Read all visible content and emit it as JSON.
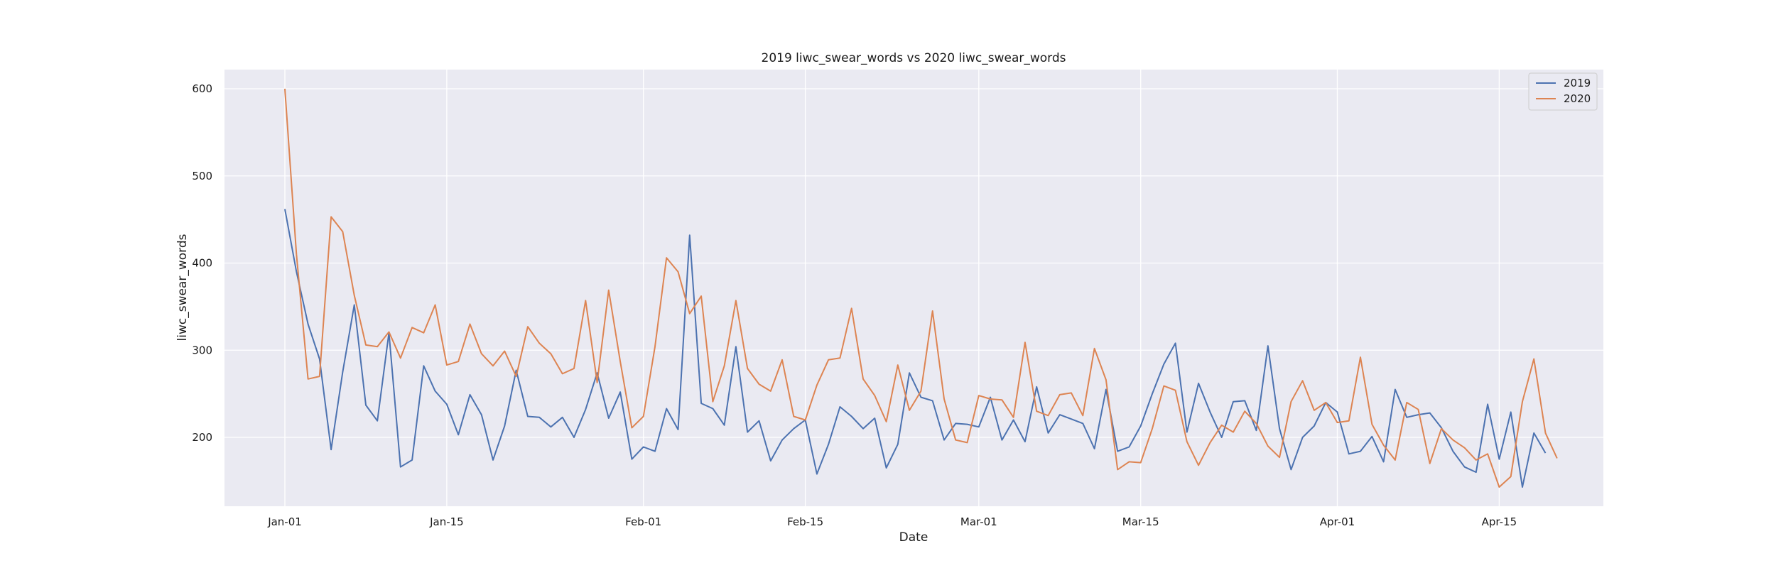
{
  "chart_data": {
    "type": "line",
    "title": "2019 liwc_swear_words vs 2020 liwc_swear_words",
    "xlabel": "Date",
    "ylabel": "liwc_swear_words",
    "x_range": [
      "Jan-01",
      "Apr-20"
    ],
    "ylim": [
      120,
      620
    ],
    "grid": true,
    "legend_position": "top-right",
    "x_ticks": [
      "Jan-01",
      "Jan-15",
      "Feb-01",
      "Feb-15",
      "Mar-01",
      "Mar-15",
      "Apr-01",
      "Apr-15"
    ],
    "y_ticks": [
      200,
      300,
      400,
      500,
      600
    ],
    "colors": {
      "2019": "#4c72b0",
      "2020": "#dd8452",
      "background": "#eaeaf2",
      "grid": "#ffffff"
    },
    "series": [
      {
        "name": "2019",
        "start": "Jan-01",
        "values": [
          462,
          390,
          330,
          290,
          186,
          275,
          352,
          237,
          219,
          320,
          166,
          174,
          282,
          253,
          238,
          203,
          249,
          226,
          174,
          213,
          277,
          224,
          223,
          212,
          223,
          200,
          232,
          274,
          222,
          252,
          175,
          189,
          184,
          233,
          209,
          432,
          239,
          233,
          214,
          304,
          206,
          219,
          173,
          197,
          210,
          220,
          158,
          192,
          235,
          224,
          210,
          222,
          165,
          192,
          274,
          246,
          242,
          197,
          216,
          215,
          212,
          246,
          197,
          220,
          195,
          258,
          205,
          226,
          221,
          216,
          187,
          255,
          184,
          189,
          213,
          250,
          284,
          308,
          206,
          262,
          229,
          200,
          241,
          242,
          208,
          305,
          210,
          163,
          200,
          213,
          240,
          229,
          181,
          184,
          201,
          172,
          255,
          223,
          226,
          228,
          211,
          184,
          166,
          160,
          238,
          175,
          229,
          143,
          205,
          182
        ]
      },
      {
        "name": "2020",
        "start": "Jan-01",
        "values": [
          600,
          410,
          267,
          270,
          453,
          436,
          363,
          306,
          304,
          321,
          291,
          326,
          320,
          352,
          283,
          287,
          330,
          296,
          282,
          299,
          270,
          327,
          308,
          296,
          273,
          279,
          357,
          263,
          369,
          287,
          211,
          224,
          304,
          406,
          390,
          342,
          362,
          241,
          282,
          357,
          279,
          261,
          253,
          289,
          224,
          220,
          260,
          289,
          291,
          348,
          267,
          248,
          218,
          283,
          231,
          253,
          345,
          244,
          197,
          194,
          248,
          244,
          243,
          223,
          309,
          230,
          225,
          249,
          251,
          225,
          302,
          266,
          163,
          172,
          171,
          210,
          259,
          254,
          195,
          168,
          194,
          214,
          206,
          230,
          216,
          190,
          177,
          241,
          265,
          231,
          240,
          217,
          219,
          292,
          215,
          191,
          174,
          240,
          232,
          170,
          210,
          197,
          188,
          174,
          181,
          143,
          155,
          241,
          290,
          205,
          176
        ]
      }
    ]
  }
}
